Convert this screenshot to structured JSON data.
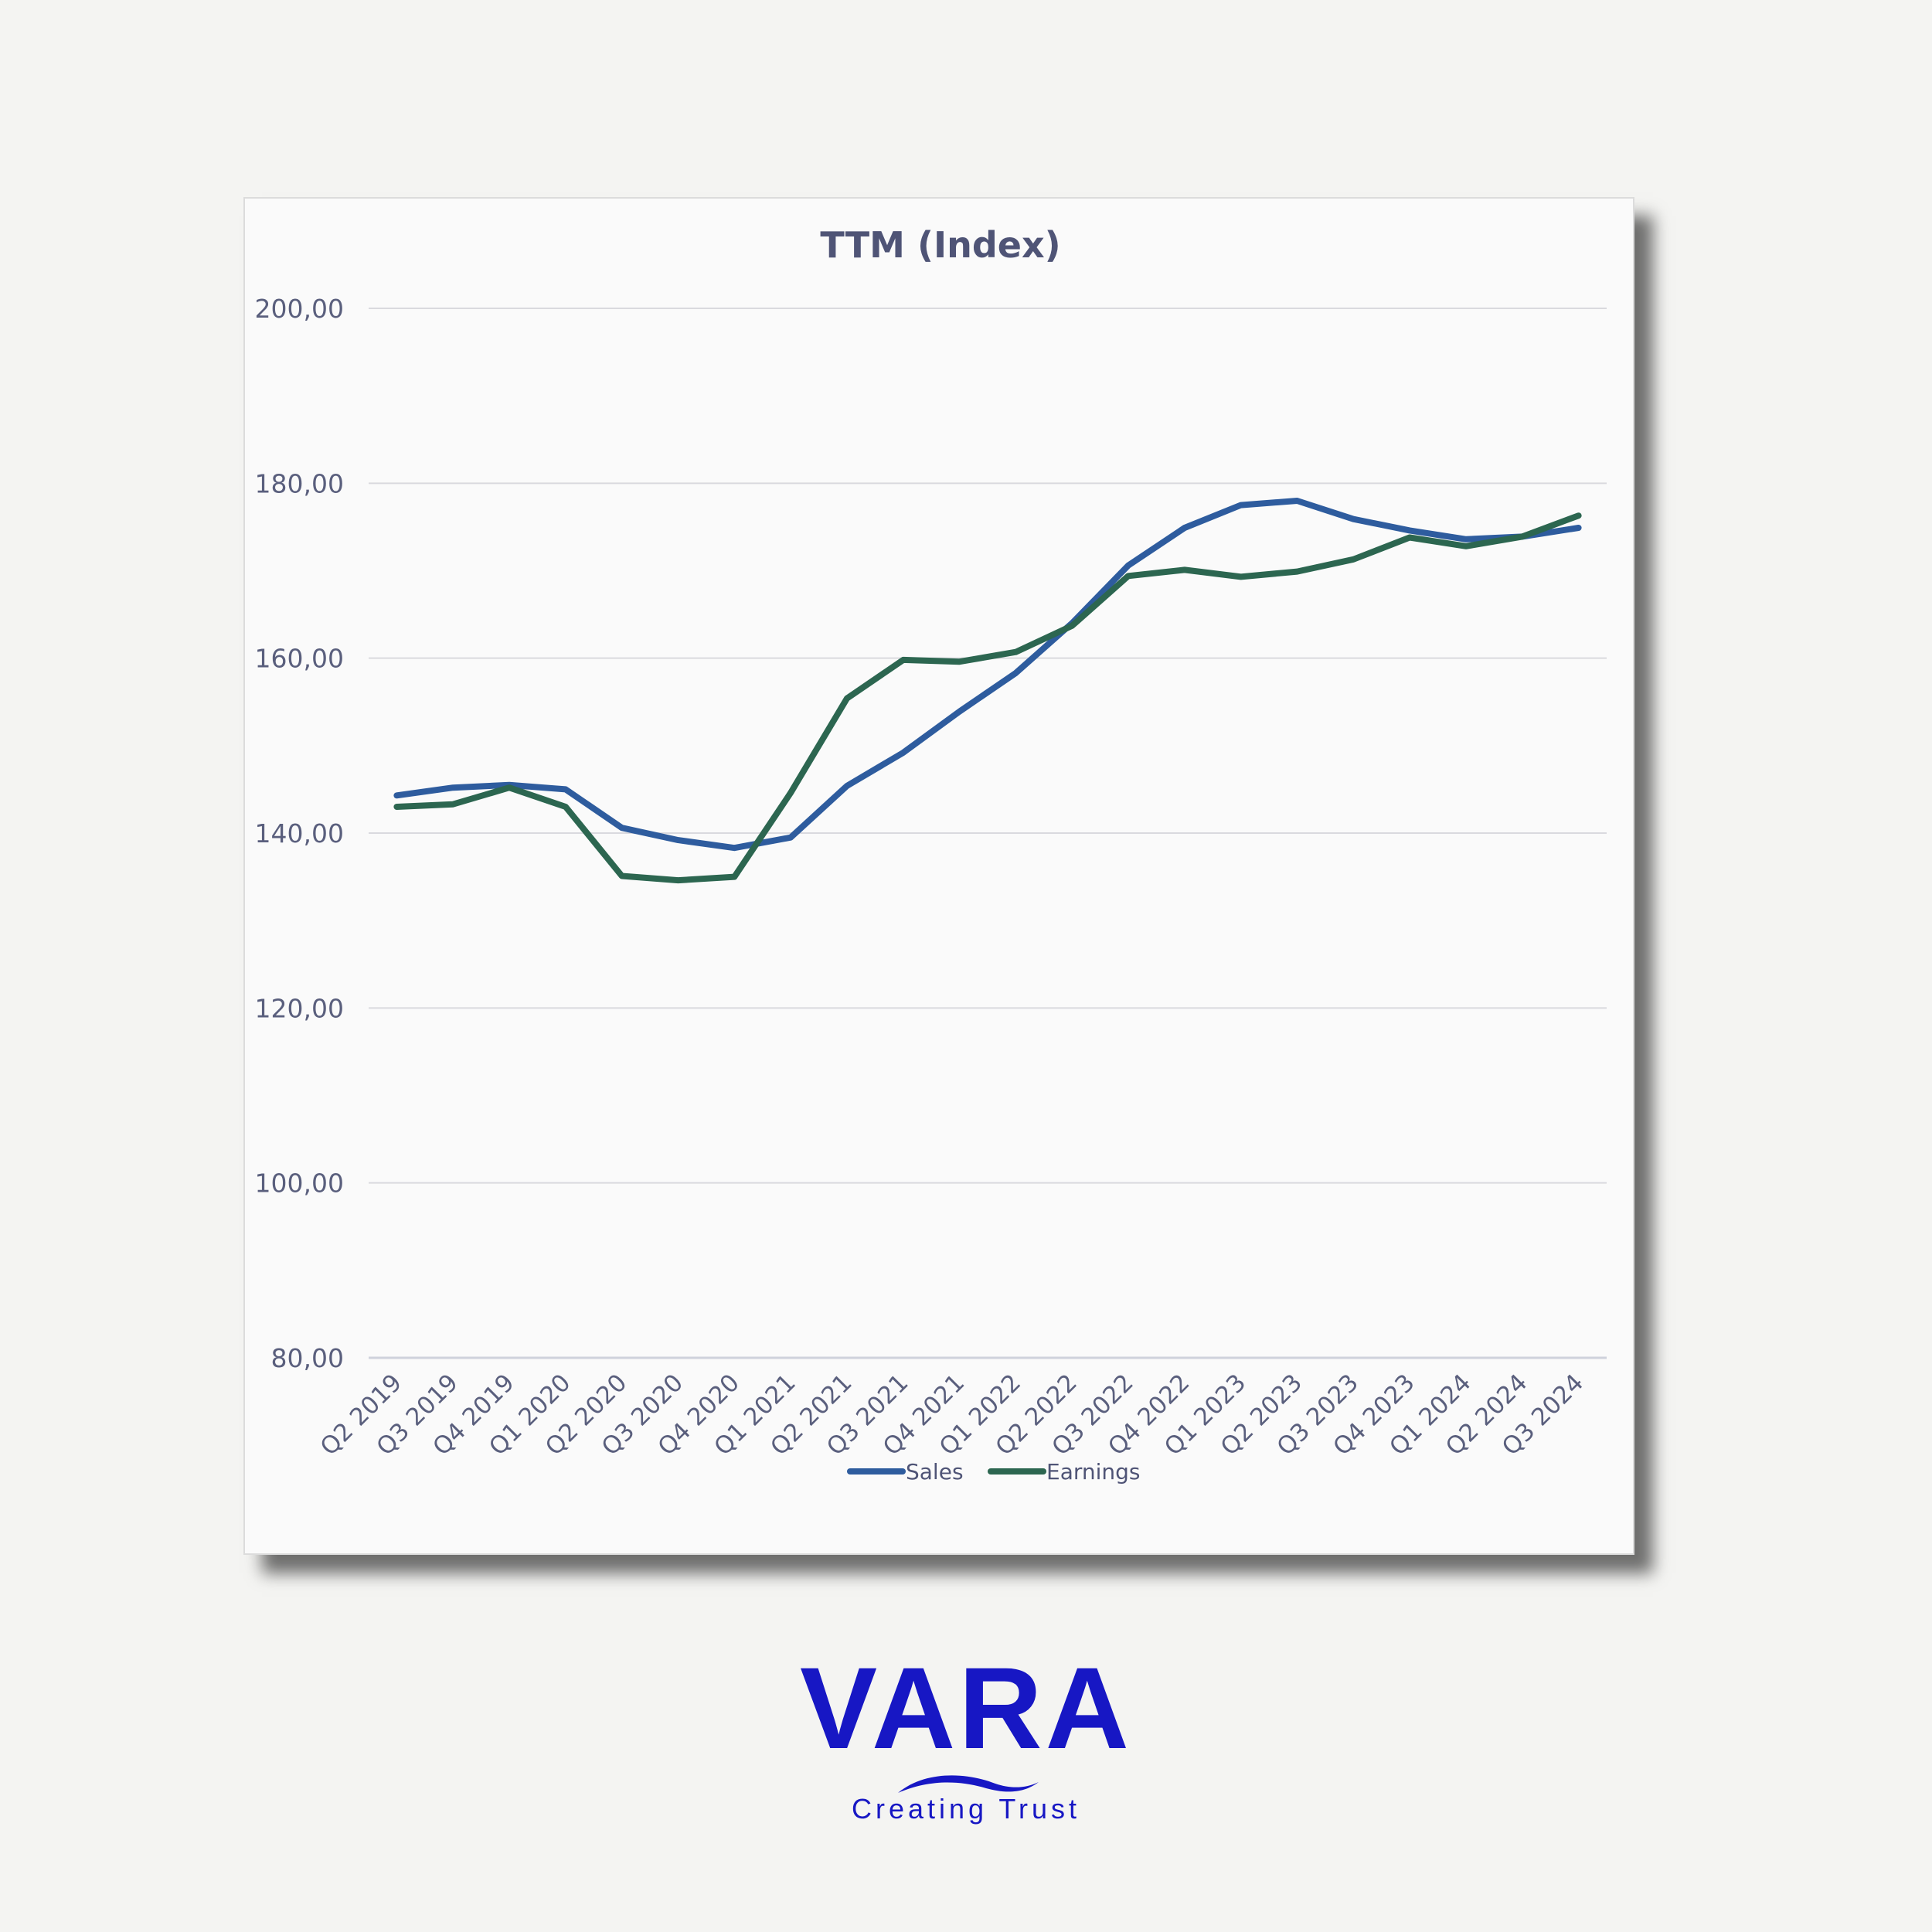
{
  "chart_data": {
    "type": "line",
    "title": "TTM (Index)",
    "categories": [
      "Q2 2019",
      "Q3 2019",
      "Q4 2019",
      "Q1 2020",
      "Q2 2020",
      "Q3 2020",
      "Q4 2020",
      "Q1 2021",
      "Q2 2021",
      "Q3 2021",
      "Q4 2021",
      "Q1 2022",
      "Q2 2022",
      "Q3 2022",
      "Q4 2022",
      "Q1 2023",
      "Q2 2023",
      "Q3 2023",
      "Q4 2023",
      "Q1 2024",
      "Q2 2024",
      "Q3 2024"
    ],
    "y_ticks": [
      "80,00",
      "100,00",
      "120,00",
      "140,00",
      "160,00",
      "180,00",
      "200,00"
    ],
    "ylim": [
      80,
      200
    ],
    "grid": true,
    "legend_position": "bottom",
    "series": [
      {
        "name": "Sales",
        "color": "#2e5c9e",
        "values": [
          144.3,
          145.2,
          145.5,
          145.0,
          140.6,
          139.2,
          138.3,
          139.5,
          145.4,
          149.2,
          153.9,
          158.3,
          164.0,
          170.6,
          174.9,
          177.5,
          178.0,
          175.9,
          174.6,
          173.6,
          173.9,
          174.9
        ]
      },
      {
        "name": "Earnings",
        "color": "#2c6650",
        "values": [
          143.0,
          143.3,
          145.2,
          143.0,
          135.1,
          134.6,
          135.0,
          144.6,
          155.4,
          159.8,
          159.6,
          160.7,
          163.7,
          169.4,
          170.1,
          169.3,
          169.9,
          171.3,
          173.8,
          172.8,
          173.9,
          176.3
        ]
      }
    ]
  },
  "brand": {
    "name": "VARA",
    "tagline": "Creating Trust",
    "color": "#1717c4"
  }
}
